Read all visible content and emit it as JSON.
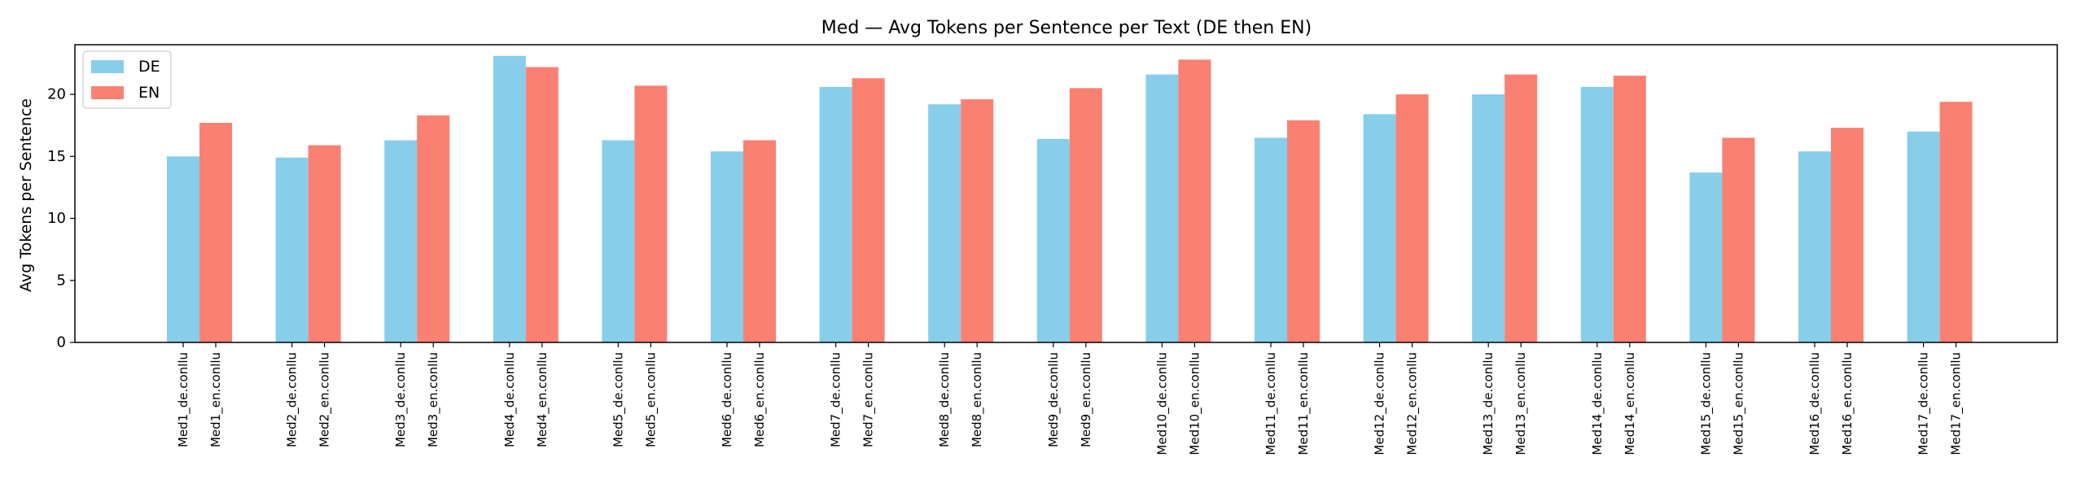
{
  "chart_data": {
    "type": "bar",
    "title": "Med — Avg Tokens per Sentence per Text (DE then EN)",
    "xlabel": "",
    "ylabel": "Avg Tokens per Sentence",
    "ylim": [
      0,
      24
    ],
    "yticks": [
      0,
      5,
      10,
      15,
      20
    ],
    "legend_position": "top-left",
    "grid": false,
    "series": [
      {
        "name": "DE",
        "color": "#87ceeb",
        "labels": [
          "Med1_de.conllu",
          "Med2_de.conllu",
          "Med3_de.conllu",
          "Med4_de.conllu",
          "Med5_de.conllu",
          "Med6_de.conllu",
          "Med7_de.conllu",
          "Med8_de.conllu",
          "Med9_de.conllu",
          "Med10_de.conllu",
          "Med11_de.conllu",
          "Med12_de.conllu",
          "Med13_de.conllu",
          "Med14_de.conllu",
          "Med15_de.conllu",
          "Med16_de.conllu",
          "Med17_de.conllu"
        ],
        "values": [
          15.0,
          14.9,
          16.3,
          23.1,
          16.3,
          15.4,
          20.6,
          19.2,
          16.4,
          21.6,
          16.5,
          18.4,
          20.0,
          20.6,
          13.7,
          15.4,
          17.0
        ]
      },
      {
        "name": "EN",
        "color": "#fa8072",
        "labels": [
          "Med1_en.conllu",
          "Med2_en.conllu",
          "Med3_en.conllu",
          "Med4_en.conllu",
          "Med5_en.conllu",
          "Med6_en.conllu",
          "Med7_en.conllu",
          "Med8_en.conllu",
          "Med9_en.conllu",
          "Med10_en.conllu",
          "Med11_en.conllu",
          "Med12_en.conllu",
          "Med13_en.conllu",
          "Med14_en.conllu",
          "Med15_en.conllu",
          "Med16_en.conllu",
          "Med17_en.conllu"
        ],
        "values": [
          17.7,
          15.9,
          18.3,
          22.2,
          20.7,
          16.3,
          21.3,
          19.6,
          20.5,
          22.8,
          17.9,
          20.0,
          21.6,
          21.5,
          16.5,
          17.3,
          19.4
        ]
      }
    ]
  }
}
